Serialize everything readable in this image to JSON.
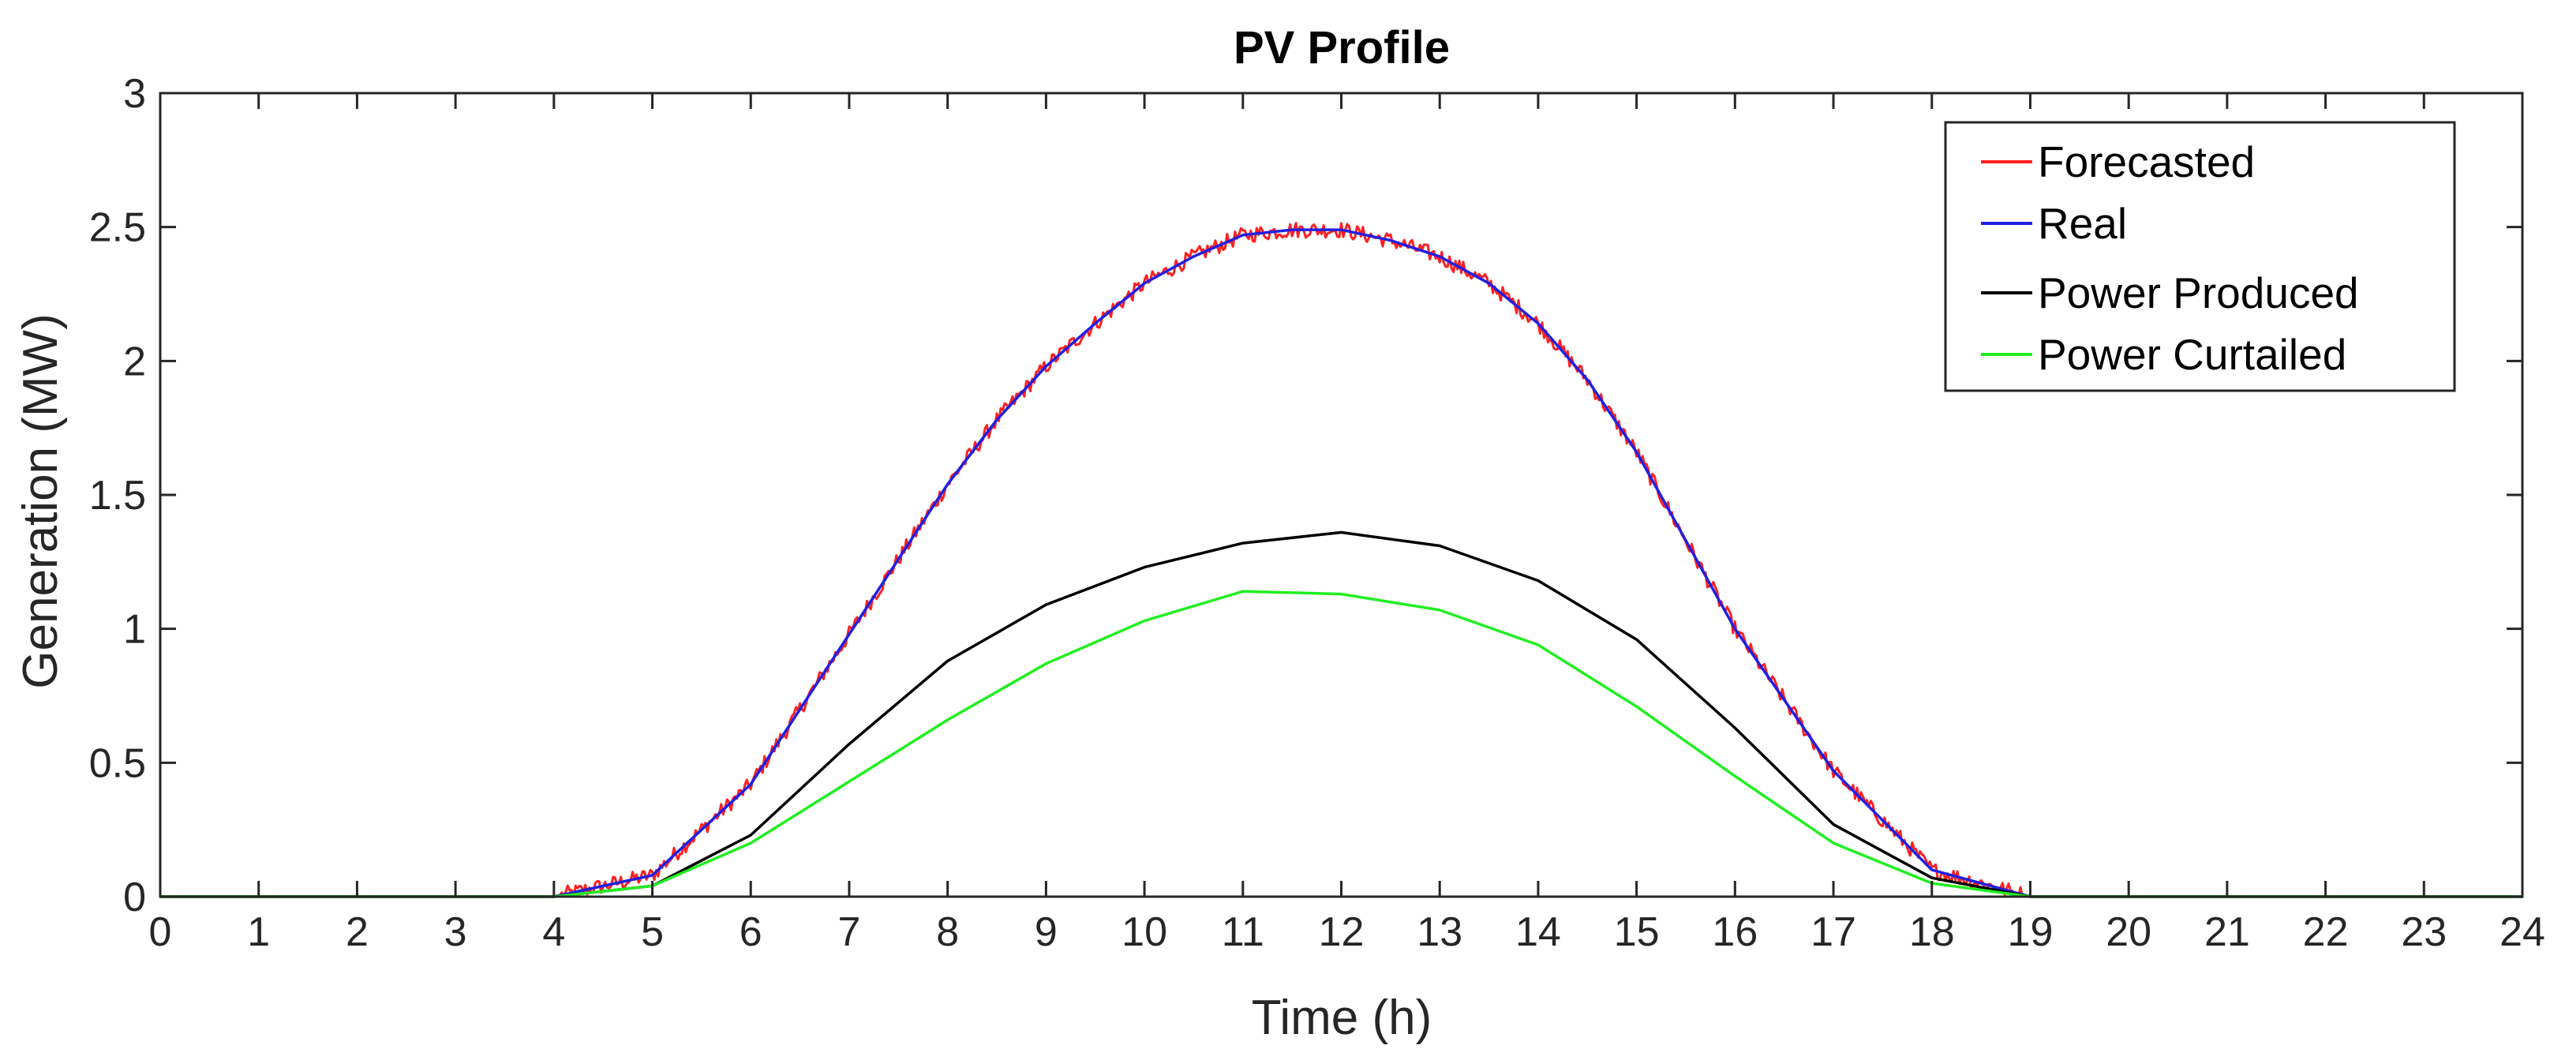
{
  "chart_data": {
    "type": "line",
    "title": "PV Profile",
    "xlabel": "Time (h)",
    "ylabel": "Generation (MW)",
    "xlim": [
      0,
      24
    ],
    "ylim": [
      0,
      3
    ],
    "xticks": [
      0,
      1,
      2,
      3,
      4,
      5,
      6,
      7,
      8,
      9,
      10,
      11,
      12,
      13,
      14,
      15,
      16,
      17,
      18,
      19,
      20,
      21,
      22,
      23,
      24
    ],
    "yticks": [
      0,
      0.5,
      1,
      1.5,
      2,
      2.5,
      3
    ],
    "ytick_labels": [
      "0",
      "0.5",
      "1",
      "1.5",
      "2",
      "2.5",
      "3"
    ],
    "grid": false,
    "legend_position": "top-right",
    "series": [
      {
        "name": "Forecasted",
        "color": "#ff2020",
        "noisy": true,
        "x": [
          0,
          1,
          2,
          3,
          4,
          5,
          6,
          7,
          8,
          8.5,
          9,
          9.5,
          10,
          10.5,
          11,
          11.5,
          12,
          12.5,
          13,
          13.5,
          14,
          14.5,
          15,
          15.5,
          16,
          17,
          18,
          19,
          20,
          21,
          22,
          23,
          24
        ],
        "y": [
          0,
          0,
          0,
          0,
          0,
          0.08,
          0.42,
          0.98,
          1.54,
          1.78,
          1.98,
          2.14,
          2.29,
          2.39,
          2.47,
          2.49,
          2.49,
          2.45,
          2.39,
          2.29,
          2.14,
          1.93,
          1.66,
          1.33,
          1.0,
          0.47,
          0.1,
          0,
          0,
          0,
          0,
          0,
          0
        ]
      },
      {
        "name": "Real",
        "color": "#2020e0",
        "noisy": false,
        "x": [
          0,
          1,
          2,
          3,
          4,
          5,
          6,
          7,
          8,
          8.5,
          9,
          9.5,
          10,
          10.5,
          11,
          11.5,
          12,
          12.5,
          13,
          13.5,
          14,
          14.5,
          15,
          15.5,
          16,
          17,
          18,
          19,
          20,
          21,
          22,
          23,
          24
        ],
        "y": [
          0,
          0,
          0,
          0,
          0,
          0.08,
          0.42,
          0.98,
          1.54,
          1.78,
          1.98,
          2.14,
          2.29,
          2.39,
          2.47,
          2.49,
          2.49,
          2.45,
          2.39,
          2.29,
          2.14,
          1.93,
          1.66,
          1.33,
          1.0,
          0.47,
          0.1,
          0,
          0,
          0,
          0,
          0,
          0
        ]
      },
      {
        "name": "Power Produced",
        "color": "#000000",
        "noisy": false,
        "x": [
          0,
          1,
          2,
          3,
          4,
          5,
          6,
          7,
          8,
          9,
          10,
          11,
          12,
          13,
          14,
          15,
          16,
          17,
          18,
          19,
          20,
          21,
          22,
          23,
          24
        ],
        "y": [
          0,
          0,
          0,
          0,
          0,
          0.04,
          0.23,
          0.57,
          0.88,
          1.09,
          1.23,
          1.32,
          1.36,
          1.31,
          1.18,
          0.96,
          0.63,
          0.27,
          0.07,
          0,
          0,
          0,
          0,
          0,
          0
        ]
      },
      {
        "name": "Power Curtailed",
        "color": "#22ee22",
        "noisy": false,
        "x": [
          0,
          1,
          2,
          3,
          4,
          5,
          6,
          7,
          8,
          9,
          10,
          11,
          12,
          13,
          14,
          15,
          16,
          17,
          18,
          19,
          20,
          21,
          22,
          23,
          24
        ],
        "y": [
          0,
          0,
          0,
          0,
          0,
          0.04,
          0.2,
          0.43,
          0.66,
          0.87,
          1.03,
          1.14,
          1.13,
          1.07,
          0.94,
          0.71,
          0.45,
          0.2,
          0.05,
          0,
          0,
          0,
          0,
          0,
          0
        ]
      }
    ]
  }
}
